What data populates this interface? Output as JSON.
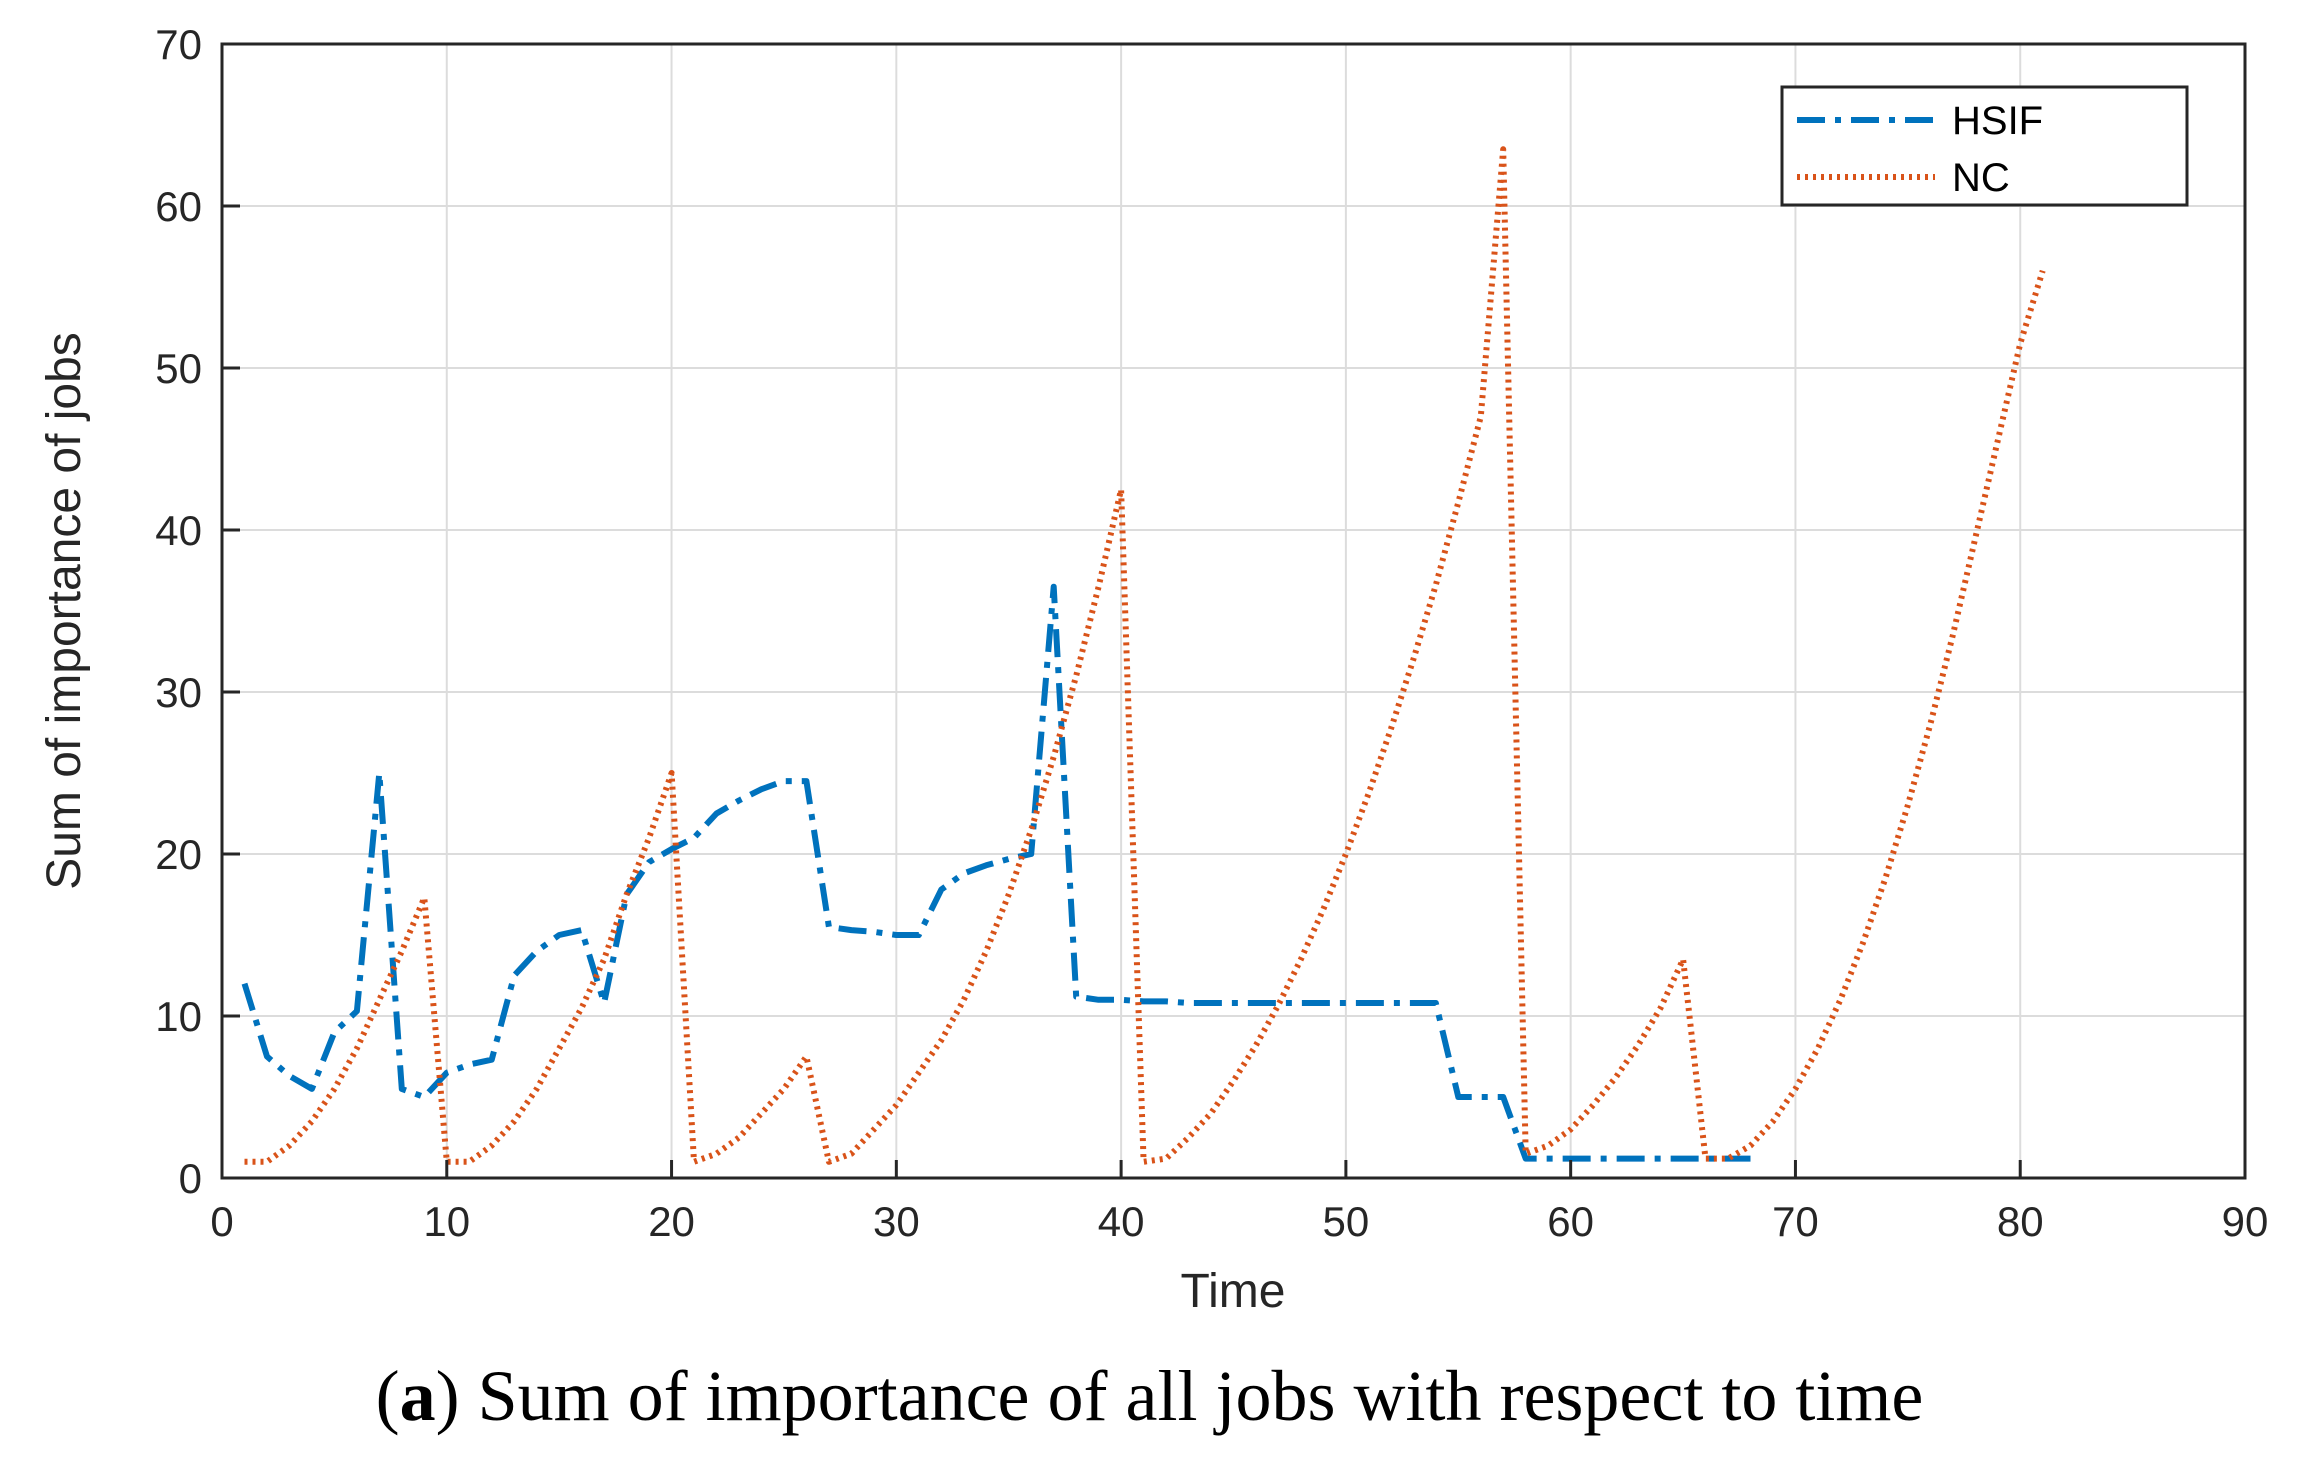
{
  "caption": {
    "label_open": "(",
    "label_letter": "a",
    "label_close": ")",
    "text": " Sum of importance of all jobs with respect to time"
  },
  "chart_data": {
    "type": "line",
    "xlabel": "Time",
    "ylabel": "Sum of importance of jobs",
    "xlim": [
      0,
      90
    ],
    "ylim": [
      0,
      70
    ],
    "xticks": [
      0,
      10,
      20,
      30,
      40,
      50,
      60,
      70,
      80,
      90
    ],
    "yticks": [
      0,
      10,
      20,
      30,
      40,
      50,
      60,
      70
    ],
    "grid": true,
    "legend_position": "top-right",
    "series": [
      {
        "name": "HSIF",
        "color": "#0072BD",
        "style": "dash-dot",
        "points": [
          [
            1,
            12
          ],
          [
            2,
            7.5
          ],
          [
            3,
            6.3
          ],
          [
            4,
            5.5
          ],
          [
            5,
            9
          ],
          [
            6,
            10.3
          ],
          [
            7,
            25
          ],
          [
            8,
            5.5
          ],
          [
            9,
            5
          ],
          [
            10,
            6.5
          ],
          [
            11,
            7
          ],
          [
            12,
            7.3
          ],
          [
            13,
            12.5
          ],
          [
            14,
            14
          ],
          [
            15,
            15
          ],
          [
            16,
            15.3
          ],
          [
            17,
            10.8
          ],
          [
            18,
            17.5
          ],
          [
            19,
            19.5
          ],
          [
            20,
            20.3
          ],
          [
            21,
            21
          ],
          [
            22,
            22.5
          ],
          [
            23,
            23.3
          ],
          [
            24,
            24
          ],
          [
            25,
            24.5
          ],
          [
            26,
            24.5
          ],
          [
            27,
            15.5
          ],
          [
            28,
            15.3
          ],
          [
            29,
            15.2
          ],
          [
            30,
            15
          ],
          [
            31,
            15
          ],
          [
            32,
            17.8
          ],
          [
            33,
            18.8
          ],
          [
            34,
            19.3
          ],
          [
            35,
            19.7
          ],
          [
            36,
            20
          ],
          [
            37,
            36.5
          ],
          [
            38,
            11.2
          ],
          [
            39,
            11
          ],
          [
            40,
            11
          ],
          [
            41,
            10.9
          ],
          [
            42,
            10.9
          ],
          [
            43,
            10.8
          ],
          [
            44,
            10.8
          ],
          [
            45,
            10.8
          ],
          [
            46,
            10.8
          ],
          [
            47,
            10.8
          ],
          [
            48,
            10.8
          ],
          [
            49,
            10.8
          ],
          [
            50,
            10.8
          ],
          [
            51,
            10.8
          ],
          [
            52,
            10.8
          ],
          [
            53,
            10.8
          ],
          [
            54,
            10.8
          ],
          [
            55,
            5
          ],
          [
            56,
            5
          ],
          [
            57,
            5
          ],
          [
            58,
            1.2
          ],
          [
            59,
            1.2
          ],
          [
            60,
            1.2
          ],
          [
            61,
            1.2
          ],
          [
            62,
            1.2
          ],
          [
            63,
            1.2
          ],
          [
            64,
            1.2
          ],
          [
            65,
            1.2
          ],
          [
            66,
            1.2
          ],
          [
            67,
            1.2
          ],
          [
            68,
            1.2
          ]
        ]
      },
      {
        "name": "NC",
        "color": "#D95319",
        "style": "dotted",
        "points": [
          [
            1,
            1
          ],
          [
            2,
            1
          ],
          [
            3,
            2
          ],
          [
            4,
            3.5
          ],
          [
            5,
            5.5
          ],
          [
            6,
            8
          ],
          [
            7,
            11
          ],
          [
            8,
            14
          ],
          [
            9,
            17.3
          ],
          [
            10,
            1
          ],
          [
            11,
            1
          ],
          [
            12,
            2
          ],
          [
            13,
            3.5
          ],
          [
            14,
            5.5
          ],
          [
            15,
            8
          ],
          [
            16,
            10.5
          ],
          [
            17,
            13.5
          ],
          [
            18,
            17.5
          ],
          [
            19,
            21
          ],
          [
            20,
            25
          ],
          [
            21,
            1
          ],
          [
            22,
            1.5
          ],
          [
            23,
            2.5
          ],
          [
            24,
            4
          ],
          [
            25,
            5.5
          ],
          [
            26,
            7.5
          ],
          [
            27,
            1
          ],
          [
            28,
            1.5
          ],
          [
            29,
            3
          ],
          [
            30,
            4.5
          ],
          [
            31,
            6.5
          ],
          [
            32,
            8.5
          ],
          [
            33,
            11
          ],
          [
            34,
            14
          ],
          [
            35,
            17.5
          ],
          [
            36,
            21.5
          ],
          [
            37,
            26
          ],
          [
            38,
            31
          ],
          [
            39,
            36.5
          ],
          [
            40,
            42.5
          ],
          [
            41,
            1
          ],
          [
            42,
            1.2
          ],
          [
            43,
            2.5
          ],
          [
            44,
            4
          ],
          [
            45,
            6
          ],
          [
            46,
            8.2
          ],
          [
            47,
            10.7
          ],
          [
            48,
            13.5
          ],
          [
            49,
            16.6
          ],
          [
            50,
            20
          ],
          [
            51,
            23.7
          ],
          [
            52,
            27.7
          ],
          [
            53,
            32
          ],
          [
            54,
            36.6
          ],
          [
            55,
            41.7
          ],
          [
            56,
            47
          ],
          [
            57,
            63.5
          ],
          [
            58,
            1.5
          ],
          [
            59,
            2
          ],
          [
            60,
            3
          ],
          [
            61,
            4.5
          ],
          [
            62,
            6.2
          ],
          [
            63,
            8.2
          ],
          [
            64,
            10.5
          ],
          [
            65,
            13.5
          ],
          [
            66,
            1.2
          ],
          [
            67,
            1.2
          ],
          [
            68,
            2
          ],
          [
            69,
            3.5
          ],
          [
            70,
            5.5
          ],
          [
            71,
            8
          ],
          [
            72,
            11
          ],
          [
            73,
            14.5
          ],
          [
            74,
            18.5
          ],
          [
            75,
            23
          ],
          [
            76,
            28
          ],
          [
            77,
            33.5
          ],
          [
            78,
            39.5
          ],
          [
            79,
            45.5
          ],
          [
            80,
            51.5
          ],
          [
            81,
            56
          ]
        ]
      }
    ]
  }
}
